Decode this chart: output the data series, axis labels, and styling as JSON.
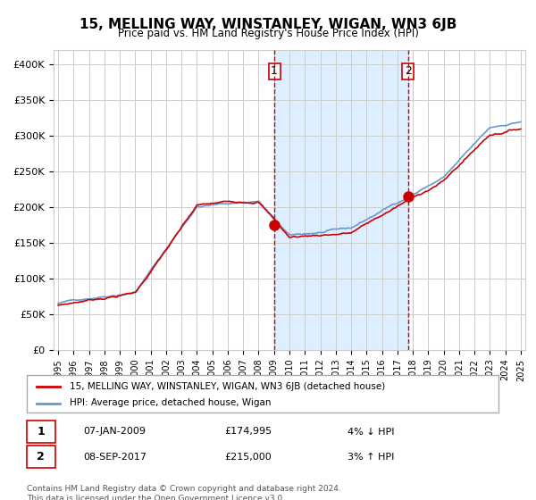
{
  "title": "15, MELLING WAY, WINSTANLEY, WIGAN, WN3 6JB",
  "subtitle": "Price paid vs. HM Land Registry's House Price Index (HPI)",
  "legend_line1": "15, MELLING WAY, WINSTANLEY, WIGAN, WN3 6JB (detached house)",
  "legend_line2": "HPI: Average price, detached house, Wigan",
  "transaction1_date": "07-JAN-2009",
  "transaction1_price": 174995,
  "transaction1_label": "4% ↓ HPI",
  "transaction2_date": "08-SEP-2017",
  "transaction2_price": 215000,
  "transaction2_label": "3% ↑ HPI",
  "footnote": "Contains HM Land Registry data © Crown copyright and database right 2024.\nThis data is licensed under the Open Government Licence v3.0.",
  "hpi_color": "#6699cc",
  "price_color": "#cc0000",
  "shade_color": "#ddeeff",
  "grid_color": "#cccccc",
  "bg_color": "#ffffff",
  "vline_color": "#cc0000",
  "marker_color": "#cc0000",
  "x_start_year": 1995,
  "x_end_year": 2025,
  "ylim_min": 0,
  "ylim_max": 420000
}
